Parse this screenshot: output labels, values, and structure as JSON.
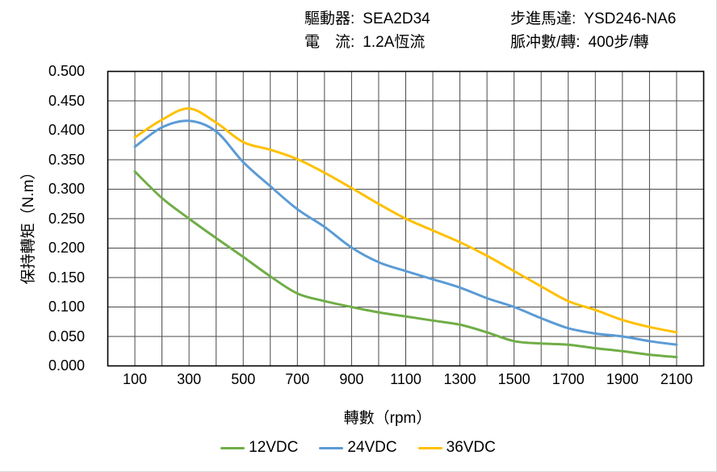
{
  "header": {
    "left": [
      {
        "label": "驅動器:",
        "value": "SEA2D34"
      },
      {
        "label": "電　流:",
        "value": "1.2A恆流"
      }
    ],
    "right": [
      {
        "label": "步進馬達:",
        "value": "YSD246-NA6"
      },
      {
        "label": "脈冲數/轉:",
        "value": "400步/轉"
      }
    ]
  },
  "chart_data": {
    "type": "line",
    "title": "",
    "xlabel": "轉數（rpm）",
    "ylabel": "保持轉矩（N.m）",
    "x": [
      100,
      200,
      300,
      400,
      500,
      600,
      700,
      800,
      900,
      1000,
      1100,
      1200,
      1300,
      1400,
      1500,
      1600,
      1700,
      1800,
      1900,
      2000,
      2100
    ],
    "series": [
      {
        "name": "12VDC",
        "color": "#70AD47",
        "values": [
          0.33,
          0.285,
          0.25,
          0.217,
          0.185,
          0.152,
          0.123,
          0.11,
          0.1,
          0.091,
          0.084,
          0.077,
          0.07,
          0.057,
          0.042,
          0.038,
          0.036,
          0.03,
          0.025,
          0.019,
          0.015
        ]
      },
      {
        "name": "24VDC",
        "color": "#5B9BD5",
        "values": [
          0.372,
          0.405,
          0.416,
          0.398,
          0.346,
          0.305,
          0.266,
          0.236,
          0.201,
          0.176,
          0.161,
          0.147,
          0.133,
          0.115,
          0.1,
          0.081,
          0.064,
          0.055,
          0.05,
          0.042,
          0.036
        ]
      },
      {
        "name": "36VDC",
        "color": "#FFC000",
        "values": [
          0.388,
          0.418,
          0.437,
          0.413,
          0.38,
          0.367,
          0.351,
          0.328,
          0.302,
          0.275,
          0.25,
          0.23,
          0.21,
          0.187,
          0.161,
          0.135,
          0.11,
          0.095,
          0.078,
          0.066,
          0.057
        ]
      }
    ],
    "xlim": [
      0,
      2200
    ],
    "ylim": [
      0,
      0.5
    ],
    "x_grid_step": 100,
    "y_grid_step": 0.05,
    "x_tick_values": [
      100,
      300,
      500,
      700,
      900,
      1100,
      1300,
      1500,
      1700,
      1900,
      2100
    ],
    "x_tick_labels": [
      "100",
      "300",
      "500",
      "700",
      "900",
      "1100",
      "1300",
      "1500",
      "1700",
      "1900",
      "2100"
    ],
    "y_tick_values": [
      0,
      0.05,
      0.1,
      0.15,
      0.2,
      0.25,
      0.3,
      0.35,
      0.4,
      0.45,
      0.5
    ],
    "y_tick_labels": [
      "0.000",
      "0.050",
      "0.100",
      "0.150",
      "0.200",
      "0.250",
      "0.300",
      "0.350",
      "0.400",
      "0.450",
      "0.500"
    ],
    "grid": true,
    "legend_position": "bottom",
    "grid_color": "#4a4a4a",
    "border_color": "#000000"
  }
}
